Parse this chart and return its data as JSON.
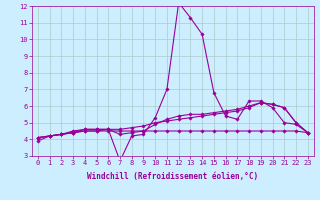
{
  "xlabel": "Windchill (Refroidissement éolien,°C)",
  "x": [
    0,
    1,
    2,
    3,
    4,
    5,
    6,
    7,
    8,
    9,
    10,
    11,
    12,
    13,
    14,
    15,
    16,
    17,
    18,
    19,
    20,
    21,
    22,
    23
  ],
  "series1": [
    3.9,
    4.2,
    4.3,
    4.5,
    4.6,
    4.6,
    4.6,
    2.7,
    4.2,
    4.3,
    5.3,
    7.0,
    12.2,
    11.3,
    10.3,
    6.8,
    5.4,
    5.2,
    6.3,
    6.3,
    5.9,
    5.0,
    4.9,
    4.4
  ],
  "series2": [
    4.1,
    4.2,
    4.3,
    4.4,
    4.5,
    4.5,
    4.6,
    4.3,
    4.4,
    4.5,
    4.9,
    5.2,
    5.4,
    5.5,
    5.5,
    5.6,
    5.7,
    5.8,
    6.0,
    6.2,
    6.1,
    5.9,
    5.0,
    4.4
  ],
  "series3": [
    4.1,
    4.2,
    4.3,
    4.4,
    4.5,
    4.5,
    4.5,
    4.5,
    4.5,
    4.5,
    4.5,
    4.5,
    4.5,
    4.5,
    4.5,
    4.5,
    4.5,
    4.5,
    4.5,
    4.5,
    4.5,
    4.5,
    4.5,
    4.4
  ],
  "series4": [
    4.1,
    4.2,
    4.3,
    4.4,
    4.6,
    4.6,
    4.6,
    4.6,
    4.7,
    4.8,
    5.0,
    5.1,
    5.2,
    5.3,
    5.4,
    5.5,
    5.6,
    5.7,
    5.9,
    6.2,
    6.1,
    5.9,
    5.0,
    4.4
  ],
  "line_color": "#990099",
  "bg_color": "#cceeff",
  "grid_color": "#aacccc",
  "ylim_min": 3,
  "ylim_max": 12,
  "yticks": [
    3,
    4,
    5,
    6,
    7,
    8,
    9,
    10,
    11,
    12
  ],
  "markersize": 1.8,
  "linewidth": 0.8,
  "tick_fontsize": 5.0,
  "xlabel_fontsize": 5.5
}
